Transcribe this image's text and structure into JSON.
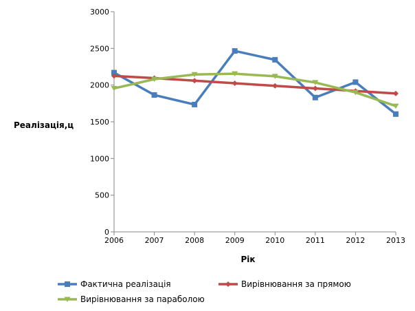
{
  "chart_data": {
    "type": "line",
    "xlabel": "Рік",
    "ylabel": "Реалізація,ц",
    "x": [
      2006,
      2007,
      2008,
      2009,
      2010,
      2011,
      2012,
      2013
    ],
    "ylim": [
      0,
      3000
    ],
    "yticks": [
      0,
      500,
      1000,
      1500,
      2000,
      2500,
      3000
    ],
    "grid": false,
    "legend_position": "bottom",
    "series": [
      {
        "name": "Фактична реалізація",
        "color": "#4a7ebb",
        "marker": "square",
        "values": [
          2170,
          1865,
          1735,
          2465,
          2345,
          1830,
          2040,
          1605
        ]
      },
      {
        "name": "Вирівнювання за прямою",
        "color": "#be4b48",
        "marker": "diamond",
        "values": [
          2125,
          2095,
          2060,
          2025,
          1990,
          1955,
          1920,
          1885
        ]
      },
      {
        "name": "Вирівнювання за параболою",
        "color": "#98b954",
        "marker": "triangle-down",
        "values": [
          1955,
          2080,
          2145,
          2155,
          2120,
          2035,
          1900,
          1715
        ]
      }
    ]
  }
}
